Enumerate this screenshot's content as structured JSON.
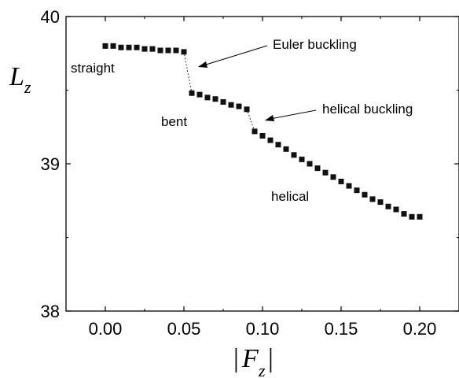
{
  "chart_data": {
    "type": "scatter",
    "xlabel": {
      "main": "F",
      "sub": "z",
      "bars": "|"
    },
    "ylabel": {
      "main": "L",
      "sub": "z"
    },
    "xlim": [
      -0.025,
      0.225
    ],
    "ylim": [
      38.0,
      40.0
    ],
    "x_ticks": [
      "0.00",
      "0.05",
      "0.10",
      "0.15",
      "0.20"
    ],
    "x_tick_values": [
      0.0,
      0.05,
      0.1,
      0.15,
      0.2
    ],
    "y_ticks": [
      "38",
      "39",
      "40"
    ],
    "y_tick_values": [
      38,
      39,
      40
    ],
    "grid": false,
    "series": [
      {
        "x": [
          0.0,
          0.005,
          0.01,
          0.015,
          0.02,
          0.025,
          0.03,
          0.035,
          0.04,
          0.045,
          0.05,
          0.055,
          0.06,
          0.065,
          0.07,
          0.075,
          0.08,
          0.085,
          0.09,
          0.095,
          0.1,
          0.105,
          0.11,
          0.115,
          0.12,
          0.125,
          0.13,
          0.135,
          0.14,
          0.145,
          0.15,
          0.155,
          0.16,
          0.165,
          0.17,
          0.175,
          0.18,
          0.185,
          0.19,
          0.195,
          0.2
        ],
        "y": [
          39.8,
          39.8,
          39.79,
          39.79,
          39.79,
          39.78,
          39.78,
          39.77,
          39.77,
          39.77,
          39.76,
          39.48,
          39.47,
          39.45,
          39.44,
          39.42,
          39.4,
          39.39,
          39.37,
          39.22,
          39.19,
          39.16,
          39.13,
          39.1,
          39.06,
          39.03,
          39.0,
          38.97,
          38.94,
          38.91,
          38.88,
          38.85,
          38.82,
          38.79,
          38.76,
          38.74,
          38.71,
          38.69,
          38.66,
          38.64,
          38.64
        ]
      }
    ],
    "transitions": [
      {
        "x1": 0.05,
        "y1": 39.76,
        "x2": 0.055,
        "y2": 39.48
      },
      {
        "x1": 0.09,
        "y1": 39.37,
        "x2": 0.095,
        "y2": 39.22
      }
    ],
    "annotations": [
      {
        "key": "straight",
        "text": "straight"
      },
      {
        "key": "bent",
        "text": "bent"
      },
      {
        "key": "helical",
        "text": "helical"
      },
      {
        "key": "euler",
        "text": "Euler buckling"
      },
      {
        "key": "helical_buckling",
        "text": "helical buckling"
      }
    ]
  }
}
